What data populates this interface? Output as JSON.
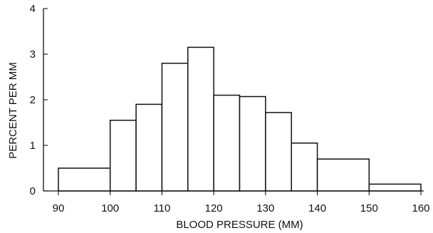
{
  "chart_data": {
    "type": "bar",
    "title": "",
    "xlabel": "BLOOD PRESSURE (MM)",
    "ylabel": "PERCENT PER MM",
    "x_ticks": [
      90,
      100,
      110,
      120,
      130,
      140,
      150,
      160
    ],
    "y_ticks": [
      0,
      1,
      2,
      3,
      4
    ],
    "xlim": [
      90,
      160
    ],
    "ylim": [
      0,
      4
    ],
    "grid": false,
    "bins": [
      {
        "start": 90,
        "end": 100,
        "value": 0.5
      },
      {
        "start": 100,
        "end": 105,
        "value": 1.55
      },
      {
        "start": 105,
        "end": 110,
        "value": 1.9
      },
      {
        "start": 110,
        "end": 115,
        "value": 2.8
      },
      {
        "start": 115,
        "end": 120,
        "value": 3.15
      },
      {
        "start": 120,
        "end": 125,
        "value": 2.1
      },
      {
        "start": 125,
        "end": 130,
        "value": 2.07
      },
      {
        "start": 130,
        "end": 135,
        "value": 1.72
      },
      {
        "start": 135,
        "end": 140,
        "value": 1.05
      },
      {
        "start": 140,
        "end": 150,
        "value": 0.7
      },
      {
        "start": 150,
        "end": 160,
        "value": 0.15
      }
    ]
  }
}
